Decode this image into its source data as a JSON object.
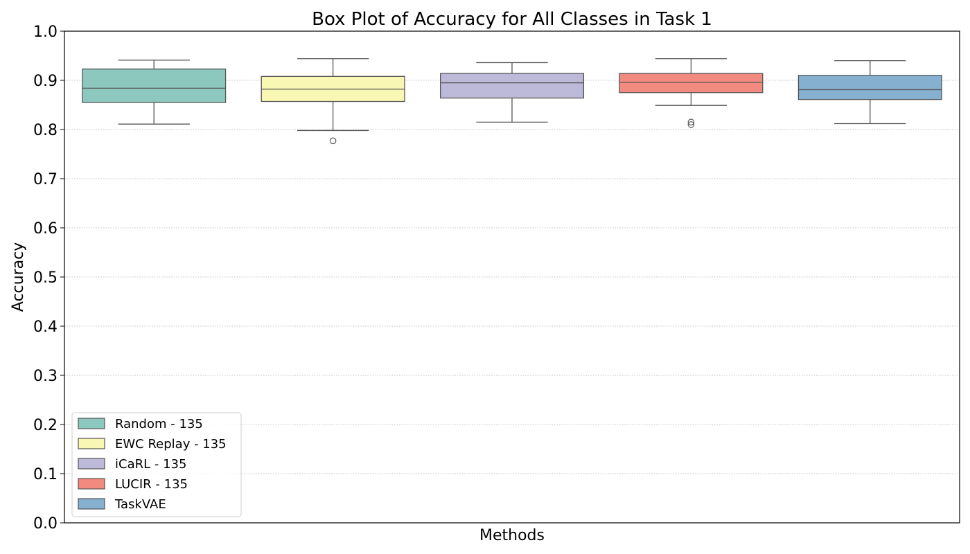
{
  "chart_data": {
    "type": "box",
    "title": "Box Plot of Accuracy for All Classes in Task 1",
    "xlabel": "Methods",
    "ylabel": "Accuracy",
    "ylim": [
      0.0,
      1.0
    ],
    "yticks": [
      "0.0",
      "0.1",
      "0.2",
      "0.3",
      "0.4",
      "0.5",
      "0.6",
      "0.7",
      "0.8",
      "0.9",
      "1.0"
    ],
    "grid": "horizontal dotted",
    "legend_position": "lower-left",
    "series": [
      {
        "name": "Random - 135",
        "color": "#8dc8be",
        "whisker_low": 0.811,
        "q1": 0.855,
        "median": 0.884,
        "q3": 0.923,
        "whisker_high": 0.941,
        "outliers": []
      },
      {
        "name": "EWC Replay - 135",
        "color": "#f8f8b4",
        "whisker_low": 0.798,
        "q1": 0.857,
        "median": 0.882,
        "q3": 0.908,
        "whisker_high": 0.944,
        "outliers": [
          0.777
        ]
      },
      {
        "name": "iCaRL - 135",
        "color": "#bdb9d8",
        "whisker_low": 0.815,
        "q1": 0.864,
        "median": 0.895,
        "q3": 0.914,
        "whisker_high": 0.936,
        "outliers": []
      },
      {
        "name": "LUCIR - 135",
        "color": "#f28a7f",
        "whisker_low": 0.849,
        "q1": 0.875,
        "median": 0.896,
        "q3": 0.914,
        "whisker_high": 0.944,
        "outliers": [
          0.81,
          0.815
        ]
      },
      {
        "name": "TaskVAE",
        "color": "#85b0d0",
        "whisker_low": 0.812,
        "q1": 0.861,
        "median": 0.881,
        "q3": 0.91,
        "whisker_high": 0.94,
        "outliers": []
      }
    ]
  }
}
